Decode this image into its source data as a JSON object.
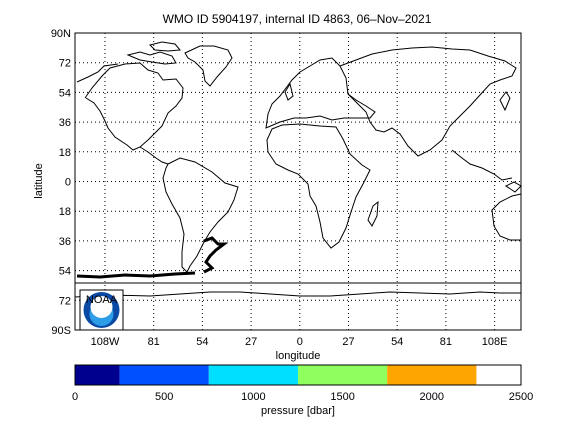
{
  "figure": {
    "title": "WMO ID 5904197, internal ID 4863, 06–Nov–2021"
  },
  "map": {
    "xlabel": "longitude",
    "ylabel": "latitude",
    "lat_ticks": [
      "90N",
      "72",
      "54",
      "36",
      "18",
      "0",
      "18",
      "36",
      "54",
      "72",
      "90S"
    ],
    "lon_ticks": [
      "108W",
      "81",
      "54",
      "27",
      "0",
      "27",
      "54",
      "81",
      "108E"
    ],
    "grid": "dotted",
    "coastline_color": "#000000",
    "track_color": "#000000",
    "logo": {
      "text": "NOAA",
      "outer_color": "#0a4aa5",
      "inner_color": "#2e9de8"
    }
  },
  "colorbar": {
    "label": "pressure [dbar]",
    "tick_labels": [
      "0",
      "500",
      "1000",
      "1500",
      "2000",
      "2500"
    ],
    "segments": [
      {
        "from": 0,
        "to": 250,
        "color": "#00008f"
      },
      {
        "from": 250,
        "to": 750,
        "color": "#0050ff"
      },
      {
        "from": 750,
        "to": 1250,
        "color": "#00dfff"
      },
      {
        "from": 1250,
        "to": 1750,
        "color": "#8fff5f"
      },
      {
        "from": 1750,
        "to": 2250,
        "color": "#ffa500"
      }
    ],
    "max": 2500
  }
}
